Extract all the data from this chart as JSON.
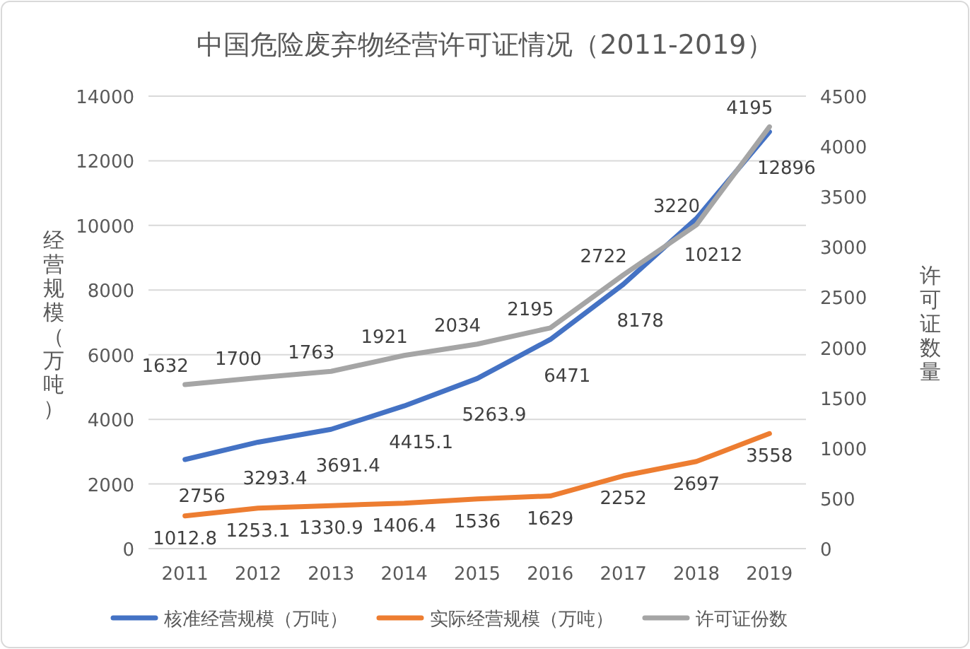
{
  "chart_data": {
    "type": "line",
    "title": "中国危险废弃物经营许可证情况（2011-2019）",
    "ylabel": "经营规模（万吨）",
    "y2label": "许可证数量",
    "categories": [
      "2011",
      "2012",
      "2013",
      "2014",
      "2015",
      "2016",
      "2017",
      "2018",
      "2019"
    ],
    "series": [
      {
        "name": "核准经营规模（万吨）",
        "color": "#4472c4",
        "values": [
          2756,
          3293.4,
          3691.4,
          4415.1,
          5263.9,
          6471,
          8178,
          10212,
          12896
        ]
      },
      {
        "name": "实际经营规模（万吨）",
        "color": "#ed7d31",
        "values": [
          1012.8,
          1253.1,
          1330.9,
          1406.4,
          1536,
          1629,
          2252,
          2697,
          3558
        ]
      },
      {
        "name": "许可证份数",
        "color": "#a5a5a5",
        "axis": "y2",
        "values": [
          1632,
          1700,
          1763,
          1921,
          2034,
          2195,
          2722,
          3220,
          4195
        ]
      }
    ],
    "ylim": [
      0,
      14000
    ],
    "yticks": [
      0,
      2000,
      4000,
      6000,
      8000,
      10000,
      12000,
      14000
    ],
    "y2lim": [
      0,
      4500
    ],
    "y2ticks": [
      0,
      500,
      1000,
      1500,
      2000,
      2500,
      3000,
      3500,
      4000,
      4500
    ],
    "grid": "y",
    "legend": "bottom",
    "data_labels": true,
    "marker": "none",
    "line_style": "solid"
  }
}
